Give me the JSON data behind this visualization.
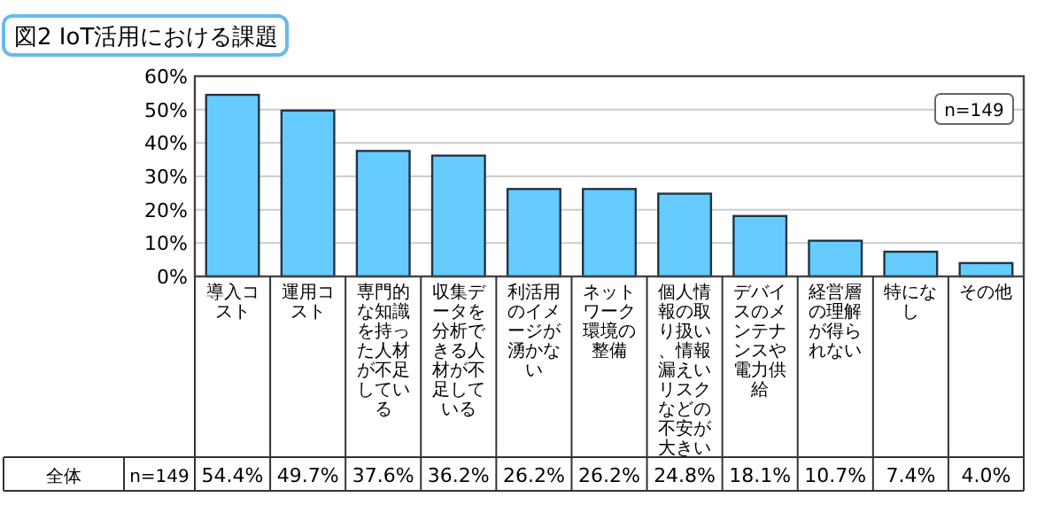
{
  "chart_data": {
    "type": "bar",
    "title": "図2 IoT活用における課題",
    "categories": [
      "導入コスト",
      "運用コスト",
      "専門的な知識を持った人材が不足している",
      "収集データを分析できる人材が不足している",
      "利活用のイメージが湧かない",
      "ネットワーク環境の整備",
      "個人情報の取り扱い、情報漏えいリスクなどの不安が大きい",
      "デバイスのメンテナンスや電力供給",
      "経営層の理解が得られない",
      "特になし",
      "その他"
    ],
    "values": [
      54.4,
      49.7,
      37.6,
      36.2,
      26.2,
      26.2,
      24.8,
      18.1,
      10.7,
      7.4,
      4.0
    ],
    "value_labels": [
      "54.4%",
      "49.7%",
      "37.6%",
      "36.2%",
      "26.2%",
      "26.2%",
      "24.8%",
      "18.1%",
      "10.7%",
      "7.4%",
      "4.0%"
    ],
    "color": "#66ccff",
    "ylim": [
      0,
      60
    ],
    "yticks": [
      {
        "value": 0,
        "label": "0%"
      },
      {
        "value": 10,
        "label": "10%"
      },
      {
        "value": 20,
        "label": "20%"
      },
      {
        "value": 30,
        "label": "30%"
      },
      {
        "value": 40,
        "label": "40%"
      },
      {
        "value": 50,
        "label": "50%"
      },
      {
        "value": 60,
        "label": "60%"
      }
    ],
    "grid": "y",
    "annotations": [
      "n=149",
      "全体",
      "n=149"
    ]
  }
}
